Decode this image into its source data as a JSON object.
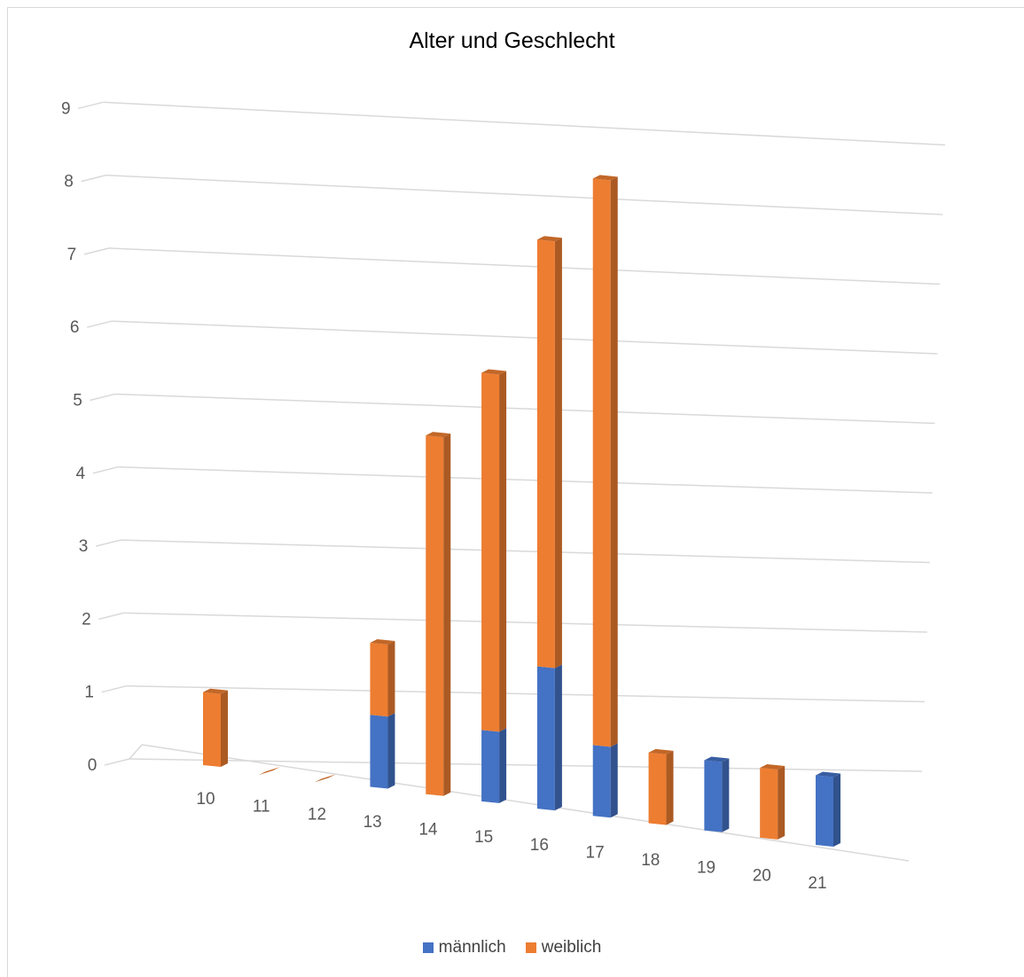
{
  "chart_data": {
    "type": "bar",
    "stacked": true,
    "three_d": true,
    "title": "Alter und Geschlecht",
    "xlabel": "",
    "ylabel": "",
    "categories": [
      "10",
      "11",
      "12",
      "13",
      "14",
      "15",
      "16",
      "17",
      "18",
      "19",
      "20",
      "21"
    ],
    "series": [
      {
        "name": "männlich",
        "color": "#4472c4",
        "values": [
          0,
          0,
          0,
          1,
          0,
          1,
          2,
          1,
          0,
          1,
          0,
          1
        ]
      },
      {
        "name": "weiblich",
        "color": "#ed7d31",
        "values": [
          1,
          0,
          0,
          1,
          5,
          5,
          6,
          8,
          1,
          0,
          1,
          0
        ]
      }
    ],
    "ylim": [
      0,
      9
    ],
    "yticks": [
      "0",
      "1",
      "2",
      "3",
      "4",
      "5",
      "6",
      "7",
      "8",
      "9"
    ],
    "grid": true,
    "legend_position": "bottom"
  }
}
